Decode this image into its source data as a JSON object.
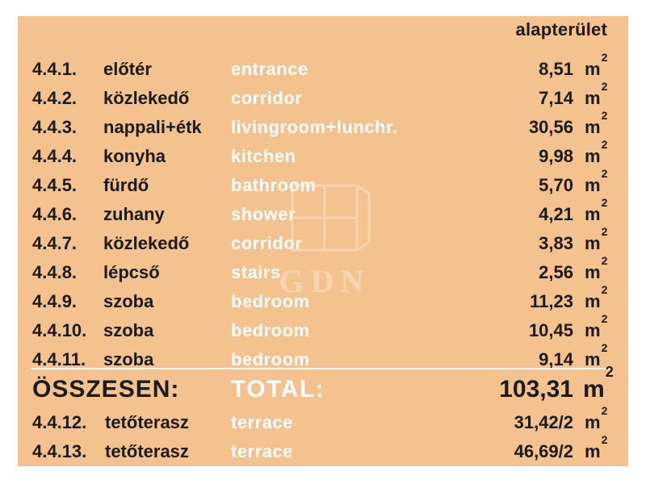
{
  "header": {
    "area_label": "alapterület"
  },
  "unit": {
    "base": "m",
    "exp": "2"
  },
  "rooms": [
    {
      "code": "4.4.1.",
      "hu": "előtér",
      "en": "entrance",
      "area": "8,51"
    },
    {
      "code": "4.4.2.",
      "hu": "közlekedő",
      "en": "corridor",
      "area": "7,14"
    },
    {
      "code": "4.4.3.",
      "hu": "nappali+étk",
      "en": "livingroom+lunchr.",
      "area": "30,56"
    },
    {
      "code": "4.4.4.",
      "hu": "konyha",
      "en": "kitchen",
      "area": "9,98"
    },
    {
      "code": "4.4.5.",
      "hu": "fürdő",
      "en": "bathroom",
      "area": "5,70"
    },
    {
      "code": "4.4.6.",
      "hu": "zuhany",
      "en": "shower",
      "area": "4,21"
    },
    {
      "code": "4.4.7.",
      "hu": "közlekedő",
      "en": "corridor",
      "area": "3,83"
    },
    {
      "code": "4.4.8.",
      "hu": "lépcső",
      "en": "stairs",
      "area": "2,56"
    },
    {
      "code": "4.4.9.",
      "hu": "szoba",
      "en": "bedroom",
      "area": "11,23"
    },
    {
      "code": "4.4.10.",
      "hu": "szoba",
      "en": "bedroom",
      "area": "10,45"
    },
    {
      "code": "4.4.11.",
      "hu": "szoba",
      "en": "bedroom",
      "area": "9,14"
    }
  ],
  "total": {
    "hu": "ÖSSZESEN:",
    "en": "TOTAL:",
    "area": "103,31"
  },
  "terraces": [
    {
      "code": "4.4.12.",
      "hu": "tetőterasz",
      "en": "terrace",
      "area": "31,42/2"
    },
    {
      "code": "4.4.13.",
      "hu": "tetőterasz",
      "en": "terrace",
      "area": "46,69/2"
    }
  ],
  "watermark": {
    "text": "GDN",
    "icon": "window-logo-icon"
  },
  "colors": {
    "background": "#f4c28f",
    "text_dark": "#1a1a1a",
    "text_light": "#ffffff"
  }
}
